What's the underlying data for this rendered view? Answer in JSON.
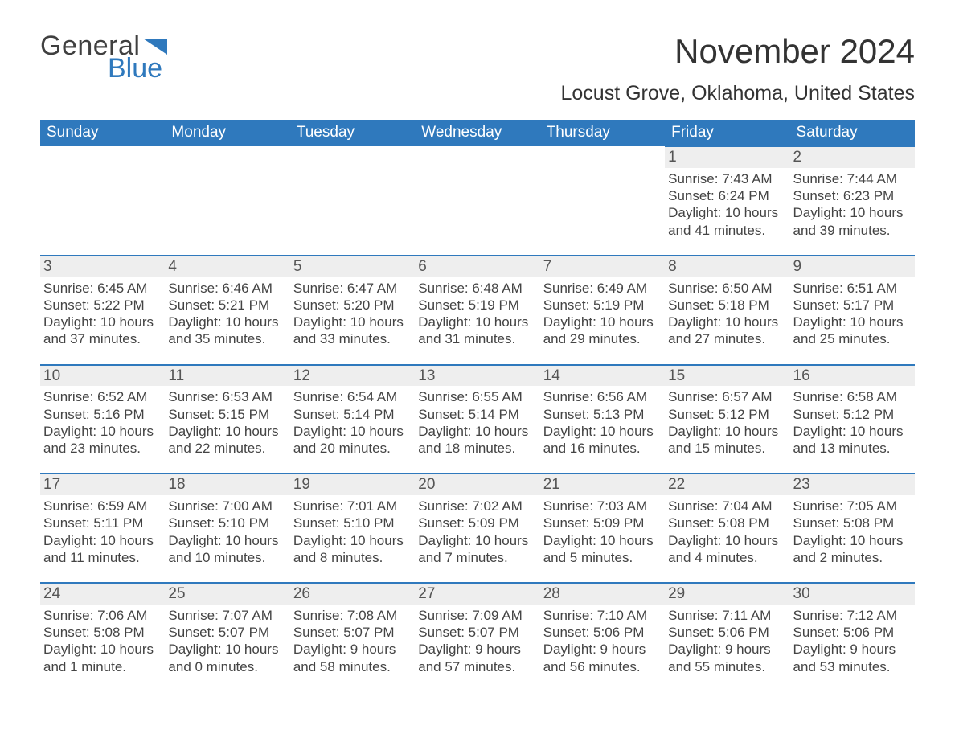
{
  "branding": {
    "logo_word1": "General",
    "logo_word2": "Blue",
    "logo_color": "#2f79bd"
  },
  "header": {
    "month_title": "November 2024",
    "location": "Locust Grove, Oklahoma, United States"
  },
  "colors": {
    "header_bg": "#2f79bd",
    "row_separator": "#2f79bd",
    "daynum_bg": "#eeeeee",
    "page_bg": "#ffffff",
    "text": "#333333"
  },
  "weekdays": [
    "Sunday",
    "Monday",
    "Tuesday",
    "Wednesday",
    "Thursday",
    "Friday",
    "Saturday"
  ],
  "weeks": [
    [
      null,
      null,
      null,
      null,
      null,
      {
        "day": "1",
        "sunrise": "Sunrise: 7:43 AM",
        "sunset": "Sunset: 6:24 PM",
        "daylight": "Daylight: 10 hours and 41 minutes."
      },
      {
        "day": "2",
        "sunrise": "Sunrise: 7:44 AM",
        "sunset": "Sunset: 6:23 PM",
        "daylight": "Daylight: 10 hours and 39 minutes."
      }
    ],
    [
      {
        "day": "3",
        "sunrise": "Sunrise: 6:45 AM",
        "sunset": "Sunset: 5:22 PM",
        "daylight": "Daylight: 10 hours and 37 minutes."
      },
      {
        "day": "4",
        "sunrise": "Sunrise: 6:46 AM",
        "sunset": "Sunset: 5:21 PM",
        "daylight": "Daylight: 10 hours and 35 minutes."
      },
      {
        "day": "5",
        "sunrise": "Sunrise: 6:47 AM",
        "sunset": "Sunset: 5:20 PM",
        "daylight": "Daylight: 10 hours and 33 minutes."
      },
      {
        "day": "6",
        "sunrise": "Sunrise: 6:48 AM",
        "sunset": "Sunset: 5:19 PM",
        "daylight": "Daylight: 10 hours and 31 minutes."
      },
      {
        "day": "7",
        "sunrise": "Sunrise: 6:49 AM",
        "sunset": "Sunset: 5:19 PM",
        "daylight": "Daylight: 10 hours and 29 minutes."
      },
      {
        "day": "8",
        "sunrise": "Sunrise: 6:50 AM",
        "sunset": "Sunset: 5:18 PM",
        "daylight": "Daylight: 10 hours and 27 minutes."
      },
      {
        "day": "9",
        "sunrise": "Sunrise: 6:51 AM",
        "sunset": "Sunset: 5:17 PM",
        "daylight": "Daylight: 10 hours and 25 minutes."
      }
    ],
    [
      {
        "day": "10",
        "sunrise": "Sunrise: 6:52 AM",
        "sunset": "Sunset: 5:16 PM",
        "daylight": "Daylight: 10 hours and 23 minutes."
      },
      {
        "day": "11",
        "sunrise": "Sunrise: 6:53 AM",
        "sunset": "Sunset: 5:15 PM",
        "daylight": "Daylight: 10 hours and 22 minutes."
      },
      {
        "day": "12",
        "sunrise": "Sunrise: 6:54 AM",
        "sunset": "Sunset: 5:14 PM",
        "daylight": "Daylight: 10 hours and 20 minutes."
      },
      {
        "day": "13",
        "sunrise": "Sunrise: 6:55 AM",
        "sunset": "Sunset: 5:14 PM",
        "daylight": "Daylight: 10 hours and 18 minutes."
      },
      {
        "day": "14",
        "sunrise": "Sunrise: 6:56 AM",
        "sunset": "Sunset: 5:13 PM",
        "daylight": "Daylight: 10 hours and 16 minutes."
      },
      {
        "day": "15",
        "sunrise": "Sunrise: 6:57 AM",
        "sunset": "Sunset: 5:12 PM",
        "daylight": "Daylight: 10 hours and 15 minutes."
      },
      {
        "day": "16",
        "sunrise": "Sunrise: 6:58 AM",
        "sunset": "Sunset: 5:12 PM",
        "daylight": "Daylight: 10 hours and 13 minutes."
      }
    ],
    [
      {
        "day": "17",
        "sunrise": "Sunrise: 6:59 AM",
        "sunset": "Sunset: 5:11 PM",
        "daylight": "Daylight: 10 hours and 11 minutes."
      },
      {
        "day": "18",
        "sunrise": "Sunrise: 7:00 AM",
        "sunset": "Sunset: 5:10 PM",
        "daylight": "Daylight: 10 hours and 10 minutes."
      },
      {
        "day": "19",
        "sunrise": "Sunrise: 7:01 AM",
        "sunset": "Sunset: 5:10 PM",
        "daylight": "Daylight: 10 hours and 8 minutes."
      },
      {
        "day": "20",
        "sunrise": "Sunrise: 7:02 AM",
        "sunset": "Sunset: 5:09 PM",
        "daylight": "Daylight: 10 hours and 7 minutes."
      },
      {
        "day": "21",
        "sunrise": "Sunrise: 7:03 AM",
        "sunset": "Sunset: 5:09 PM",
        "daylight": "Daylight: 10 hours and 5 minutes."
      },
      {
        "day": "22",
        "sunrise": "Sunrise: 7:04 AM",
        "sunset": "Sunset: 5:08 PM",
        "daylight": "Daylight: 10 hours and 4 minutes."
      },
      {
        "day": "23",
        "sunrise": "Sunrise: 7:05 AM",
        "sunset": "Sunset: 5:08 PM",
        "daylight": "Daylight: 10 hours and 2 minutes."
      }
    ],
    [
      {
        "day": "24",
        "sunrise": "Sunrise: 7:06 AM",
        "sunset": "Sunset: 5:08 PM",
        "daylight": "Daylight: 10 hours and 1 minute."
      },
      {
        "day": "25",
        "sunrise": "Sunrise: 7:07 AM",
        "sunset": "Sunset: 5:07 PM",
        "daylight": "Daylight: 10 hours and 0 minutes."
      },
      {
        "day": "26",
        "sunrise": "Sunrise: 7:08 AM",
        "sunset": "Sunset: 5:07 PM",
        "daylight": "Daylight: 9 hours and 58 minutes."
      },
      {
        "day": "27",
        "sunrise": "Sunrise: 7:09 AM",
        "sunset": "Sunset: 5:07 PM",
        "daylight": "Daylight: 9 hours and 57 minutes."
      },
      {
        "day": "28",
        "sunrise": "Sunrise: 7:10 AM",
        "sunset": "Sunset: 5:06 PM",
        "daylight": "Daylight: 9 hours and 56 minutes."
      },
      {
        "day": "29",
        "sunrise": "Sunrise: 7:11 AM",
        "sunset": "Sunset: 5:06 PM",
        "daylight": "Daylight: 9 hours and 55 minutes."
      },
      {
        "day": "30",
        "sunrise": "Sunrise: 7:12 AM",
        "sunset": "Sunset: 5:06 PM",
        "daylight": "Daylight: 9 hours and 53 minutes."
      }
    ]
  ]
}
